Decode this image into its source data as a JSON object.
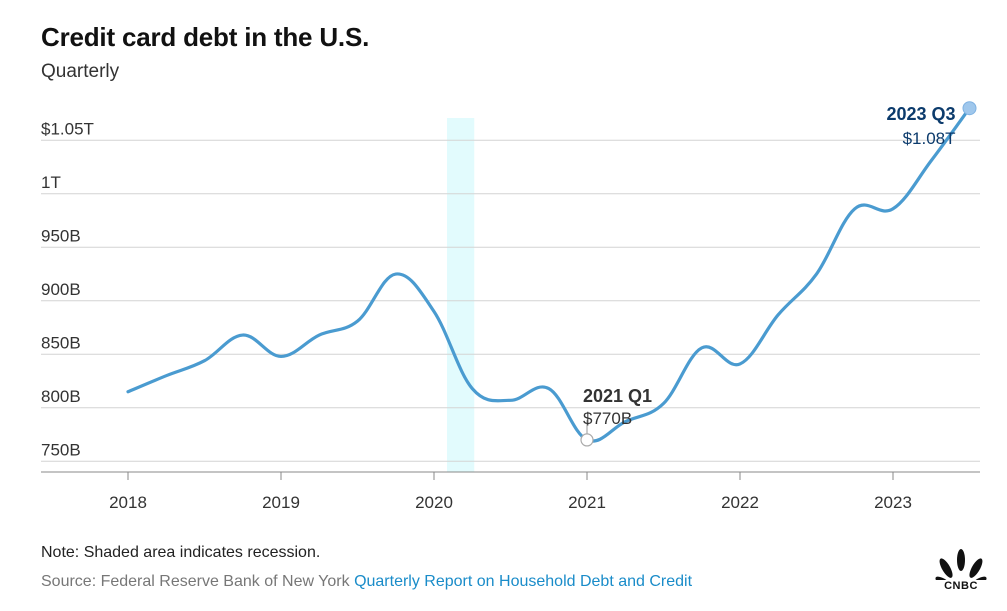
{
  "header": {
    "title": "Credit card debt in the U.S.",
    "subtitle": "Quarterly"
  },
  "chart_data": {
    "type": "line",
    "title": "Credit card debt in the U.S.",
    "subtitle": "Quarterly",
    "x_tick_labels": [
      "2018",
      "2019",
      "2020",
      "2021",
      "2022",
      "2023"
    ],
    "y_tick_values": [
      750,
      800,
      850,
      900,
      950,
      1000,
      1050
    ],
    "y_tick_labels": [
      "750B",
      "800B",
      "850B",
      "900B",
      "950B",
      "1T",
      "$1.05T"
    ],
    "ylim": [
      740,
      1080
    ],
    "x_range": [
      "2018",
      "2023 Q3"
    ],
    "grid": "horizontal",
    "series": [
      {
        "color": "#4a9bd0",
        "x": [
          "2018 Q1",
          "2018 Q2",
          "2018 Q3",
          "2018 Q4",
          "2019 Q1",
          "2019 Q2",
          "2019 Q3",
          "2019 Q4",
          "2020 Q1",
          "2020 Q2",
          "2020 Q3",
          "2020 Q4",
          "2021 Q1",
          "2021 Q2",
          "2021 Q3",
          "2021 Q4",
          "2022 Q1",
          "2022 Q2",
          "2022 Q3",
          "2022 Q4",
          "2023 Q1",
          "2023 Q2",
          "2023 Q3"
        ],
        "values": [
          815,
          830,
          844,
          868,
          848,
          868,
          881,
          925,
          890,
          818,
          807,
          818,
          770,
          787,
          804,
          856,
          841,
          887,
          925,
          986,
          986,
          1031,
          1080
        ]
      }
    ],
    "recession_shading": {
      "start": "2020 Q1",
      "end": "2020 Q2",
      "color": "#e2fbfd"
    },
    "annotations": [
      {
        "label": "2021 Q1",
        "value_label": "$770B",
        "x": "2021 Q1",
        "y": 770
      },
      {
        "label": "2023 Q3",
        "value_label": "$1.08T",
        "x": "2023 Q3",
        "y": 1080
      }
    ]
  },
  "footer": {
    "note": "Note: Shaded area indicates recession.",
    "source_prefix": "Source: Federal Reserve Bank of New York",
    "source_link": "Quarterly Report on Household Debt and Credit"
  },
  "logo": {
    "text": "CNBC",
    "icon": "nbc-peacock-icon"
  }
}
